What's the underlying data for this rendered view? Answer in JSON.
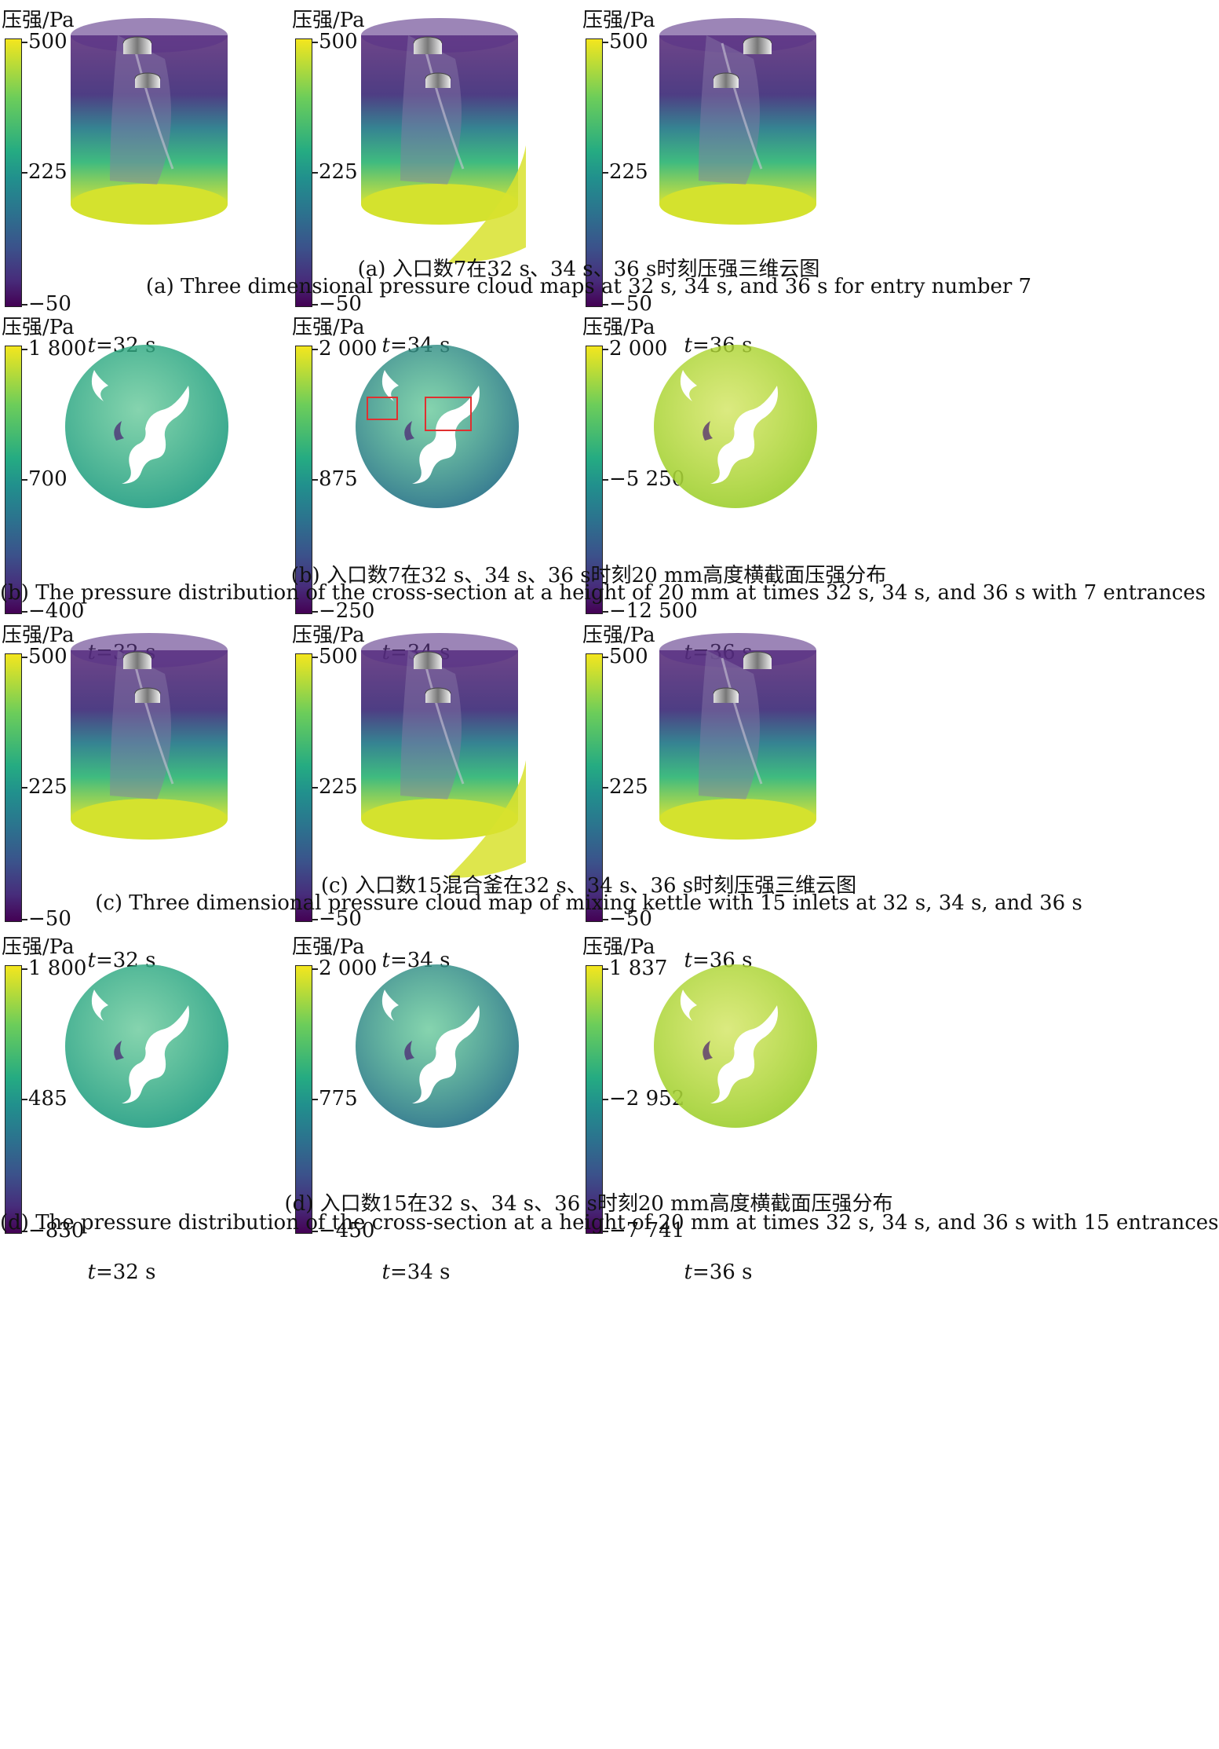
{
  "legend_title": "压强/Pa",
  "panels": [
    {
      "type": "3d",
      "caption_cn": "(a) 入口数7在32 s、34 s、36 s时刻压强三维云图",
      "caption_en": "(a) Three dimensional pressure cloud maps at 32 s, 34 s, and 36 s for entry number 7",
      "cells": [
        {
          "time": "=32 s",
          "ticks": [
            "500",
            "225",
            "−50"
          ]
        },
        {
          "time": "=34 s",
          "ticks": [
            "500",
            "225",
            "−50"
          ]
        },
        {
          "time": "=36 s",
          "ticks": [
            "500",
            "225",
            "−50"
          ]
        }
      ]
    },
    {
      "type": "section",
      "caption_cn": "(b) 入口数7在32 s、34 s、36 s时刻20 mm高度横截面压强分布",
      "caption_en": "(b) The pressure distribution of the cross-section at a height of 20 mm at times 32 s, 34 s, and 36 s with 7 entrances",
      "cells": [
        {
          "time": "=32 s",
          "ticks": [
            "1 800",
            "700",
            "−400"
          ]
        },
        {
          "time": "=34 s",
          "ticks": [
            "2 000",
            "875",
            "−250"
          ]
        },
        {
          "time": "=36 s",
          "ticks": [
            "2 000",
            "−5 250",
            "−12 500"
          ]
        }
      ]
    },
    {
      "type": "3d",
      "caption_cn": "(c) 入口数15混合釜在32 s、34 s、36 s时刻压强三维云图",
      "caption_en": "(c) Three dimensional pressure cloud map of mixing kettle with 15 inlets at 32 s, 34 s, and 36 s",
      "cells": [
        {
          "time": "=32 s",
          "ticks": [
            "500",
            "225",
            "−50"
          ]
        },
        {
          "time": "=34 s",
          "ticks": [
            "500",
            "225",
            "−50"
          ]
        },
        {
          "time": "=36 s",
          "ticks": [
            "500",
            "225",
            "−50"
          ]
        }
      ]
    },
    {
      "type": "section",
      "caption_cn": "(d) 入口数15在32 s、34 s、36 s时刻20 mm高度横截面压强分布",
      "caption_en": "(d) The pressure distribution of the cross-section at a height of 20 mm at times 32 s, 34 s, and 36 s with 15 entrances",
      "cells": [
        {
          "time": "=32 s",
          "ticks": [
            "1 800",
            "485",
            "−830"
          ]
        },
        {
          "time": "=34 s",
          "ticks": [
            "2 000",
            "775",
            "−450"
          ]
        },
        {
          "time": "=36 s",
          "ticks": [
            "1 837",
            "−2 952",
            "−7 741"
          ]
        }
      ]
    }
  ],
  "colors": {
    "colormap": [
      "#440154",
      "#472d7b",
      "#3b528b",
      "#2c728e",
      "#21908d",
      "#25ab82",
      "#6ccd5a",
      "#f4e61e"
    ],
    "highlight_box": "#e03030"
  }
}
